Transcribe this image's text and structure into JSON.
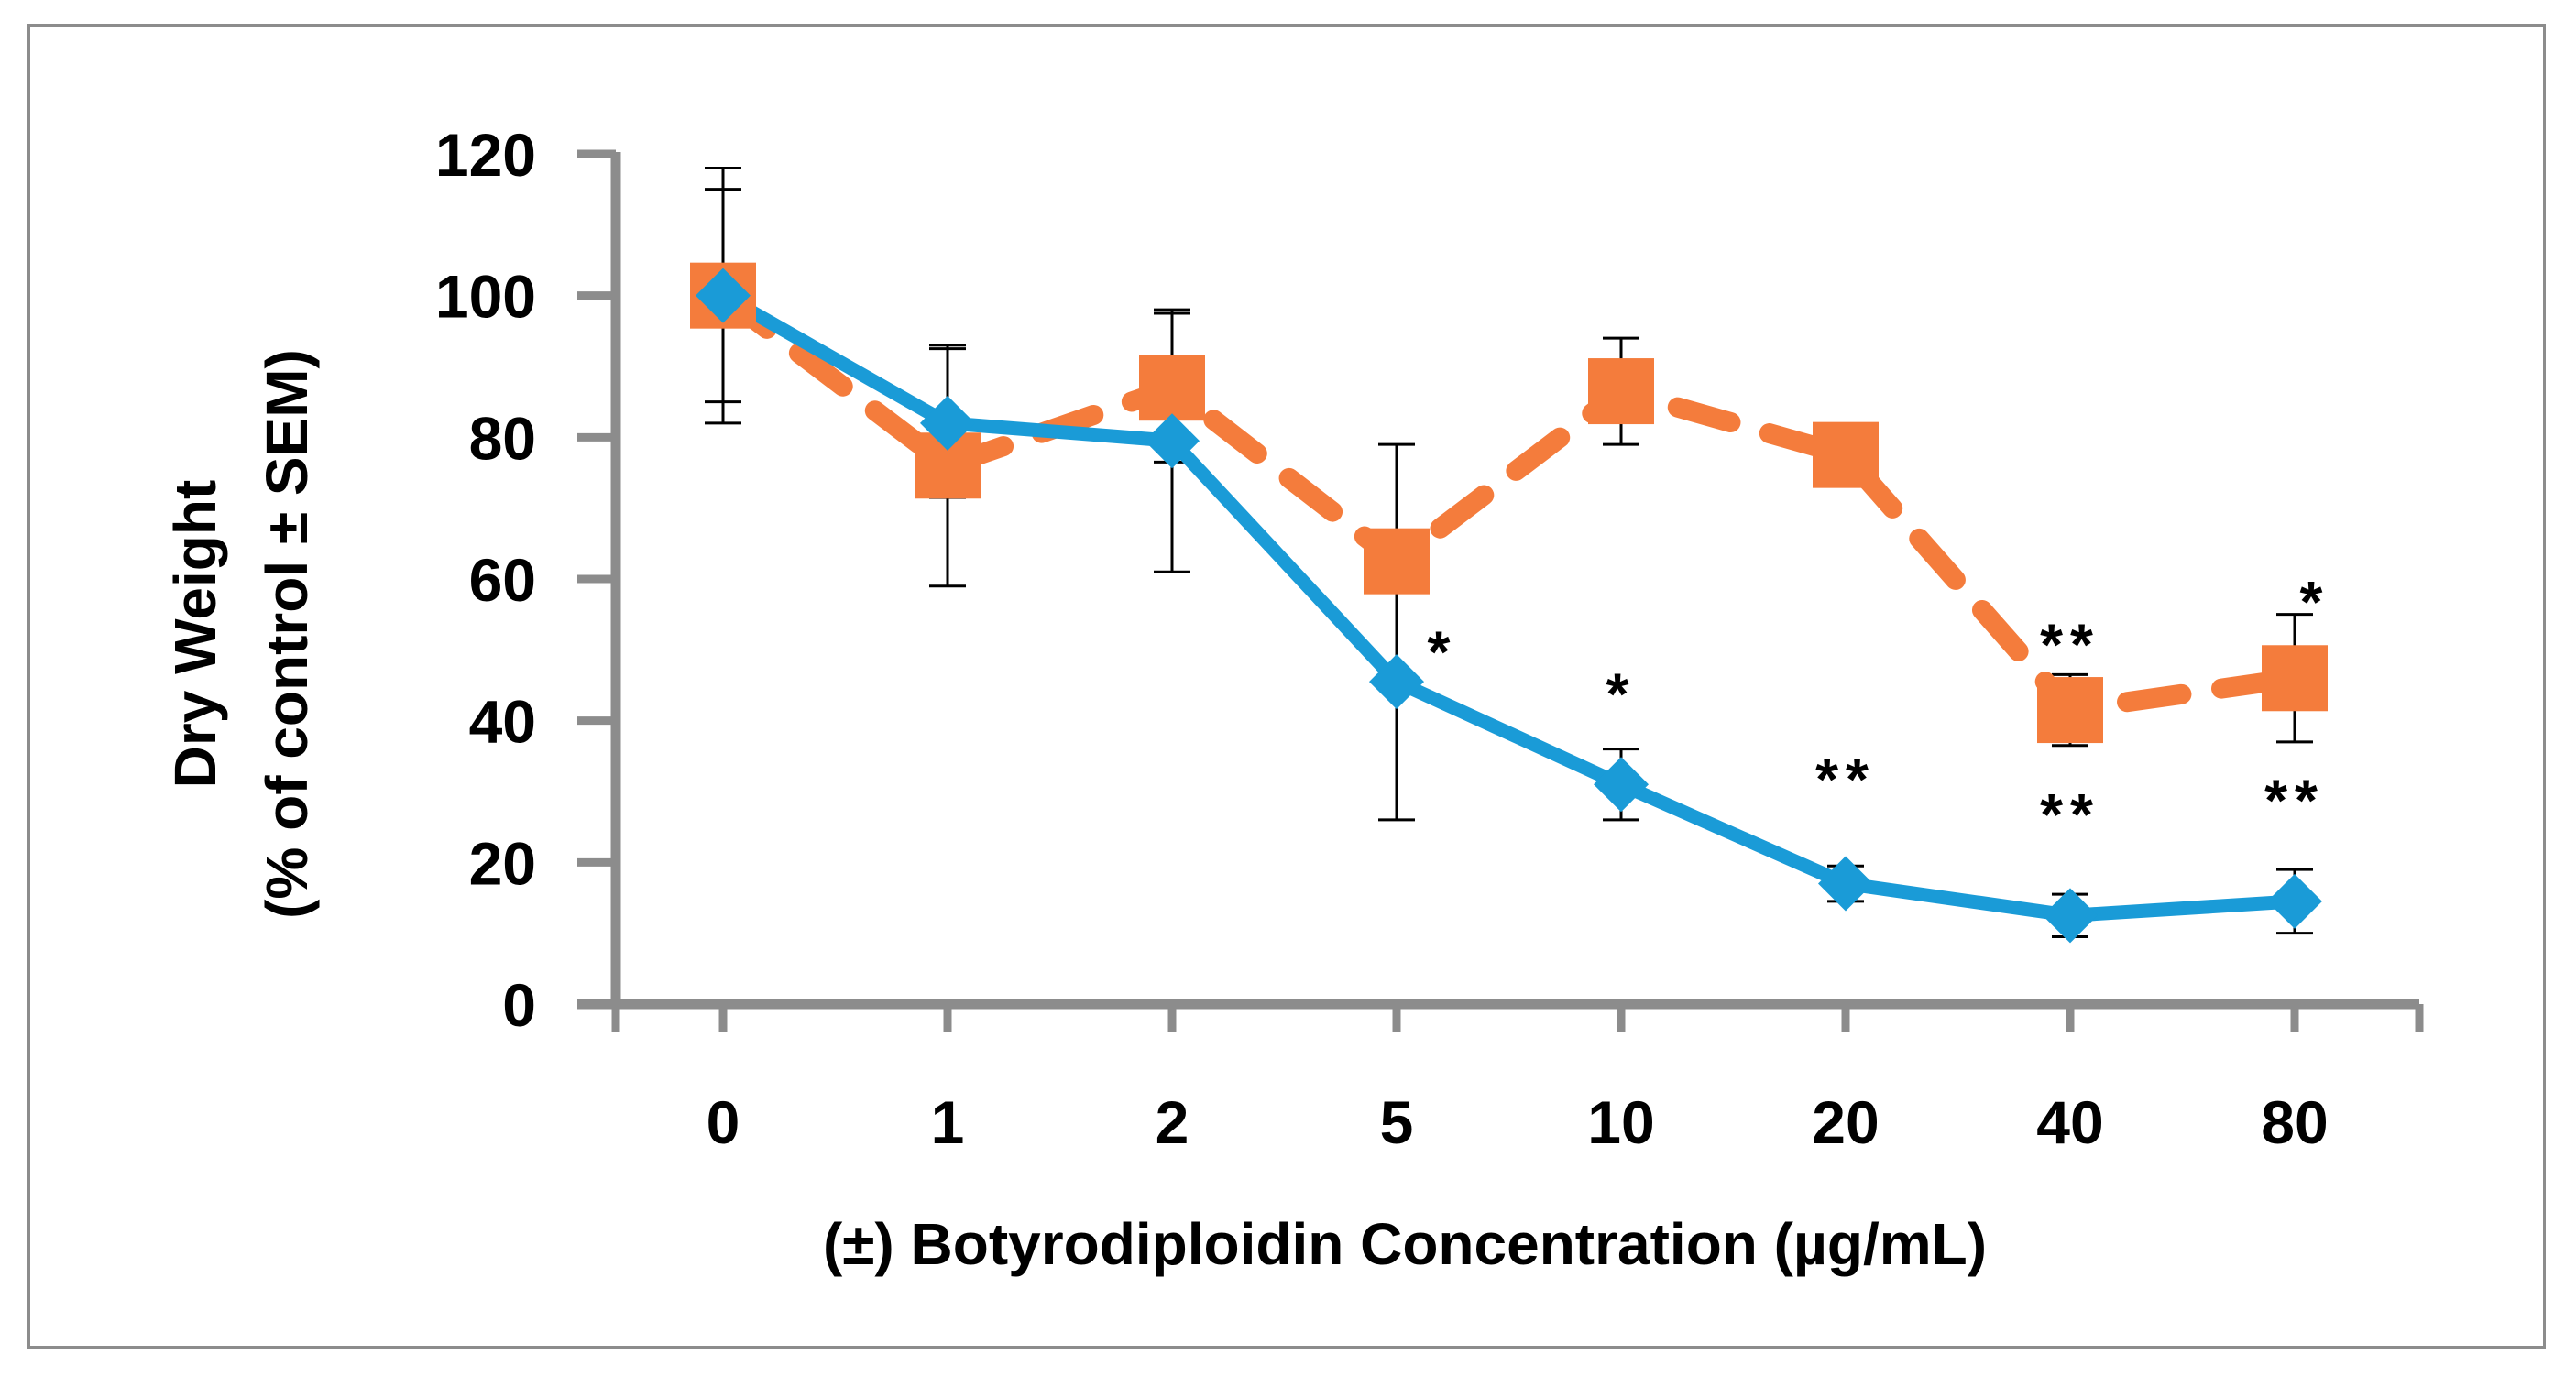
{
  "chart_data": {
    "type": "line",
    "title": "",
    "xlabel": "(±) Botyrodiploidin Concentration (µg/mL)",
    "ylabel_line1": "Dry Weight",
    "ylabel_line2": "(% of control ± SEM)",
    "categories": [
      "0",
      "1",
      "2",
      "5",
      "10",
      "20",
      "40",
      "80"
    ],
    "y_ticks": [
      "0",
      "20",
      "40",
      "60",
      "80",
      "100",
      "120"
    ],
    "ylim": [
      0,
      120
    ],
    "grid": false,
    "legend": "none",
    "colors": {
      "series_a": "#1a9bd7",
      "series_b": "#f47c3c",
      "axis": "#8c8c8c",
      "error": "#000000"
    },
    "series": [
      {
        "name": "series_a",
        "style": "solid-diamond",
        "values": [
          100,
          82,
          79.5,
          45.5,
          31,
          17,
          12.5,
          14.5
        ],
        "error": [
          18,
          10.5,
          18.5,
          19.5,
          5,
          2.5,
          3,
          4.5
        ]
      },
      {
        "name": "series_b",
        "style": "dashed-square",
        "values": [
          100,
          76,
          87,
          62.5,
          86.5,
          77.5,
          41.5,
          46
        ],
        "error": [
          15,
          17,
          10.5,
          16.5,
          7.5,
          2,
          5,
          9
        ]
      }
    ],
    "annotations": [
      {
        "text": "*",
        "category": "5",
        "y": 50,
        "series": "series_a"
      },
      {
        "text": "*",
        "category": "10",
        "y": 44,
        "series": "series_a"
      },
      {
        "text": "**",
        "category": "20",
        "y": 32,
        "series": "series_a"
      },
      {
        "text": "**",
        "category": "40",
        "y": 27,
        "series": "series_a"
      },
      {
        "text": "**",
        "category": "80",
        "y": 29,
        "series": "series_a"
      },
      {
        "text": "**",
        "category": "40",
        "y": 51,
        "series": "series_b"
      },
      {
        "text": "*",
        "category": "80",
        "y": 57,
        "series": "series_b"
      }
    ]
  }
}
